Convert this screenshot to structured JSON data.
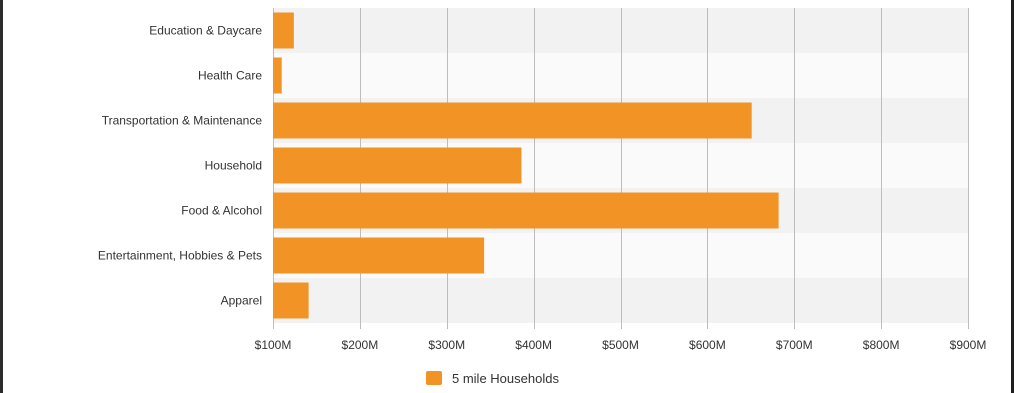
{
  "chart_data": {
    "type": "bar",
    "orientation": "horizontal",
    "categories": [
      "Education & Daycare",
      "Health Care",
      "Transportation & Maintenance",
      "Household",
      "Food & Alcohol",
      "Entertainment, Hobbies & Pets",
      "Apparel"
    ],
    "series": [
      {
        "name": "5 mile Households",
        "values": [
          124,
          110,
          651,
          386,
          682,
          343,
          141
        ]
      }
    ],
    "value_unit": "$M",
    "xlim": [
      100,
      900
    ],
    "x_ticks": [
      100,
      200,
      300,
      400,
      500,
      600,
      700,
      800,
      900
    ],
    "x_tick_labels": [
      "$100M",
      "$200M",
      "$300M",
      "$400M",
      "$500M",
      "$600M",
      "$700M",
      "$800M",
      "$900M"
    ],
    "grid": true,
    "legend_position": "bottom",
    "bar_color": "#F29425",
    "band_colors": [
      "#F2F2F2",
      "#FAFAFA"
    ],
    "grid_color": "#BDBDBD"
  },
  "legend": {
    "label": "5 mile Households",
    "color": "#F29425"
  }
}
